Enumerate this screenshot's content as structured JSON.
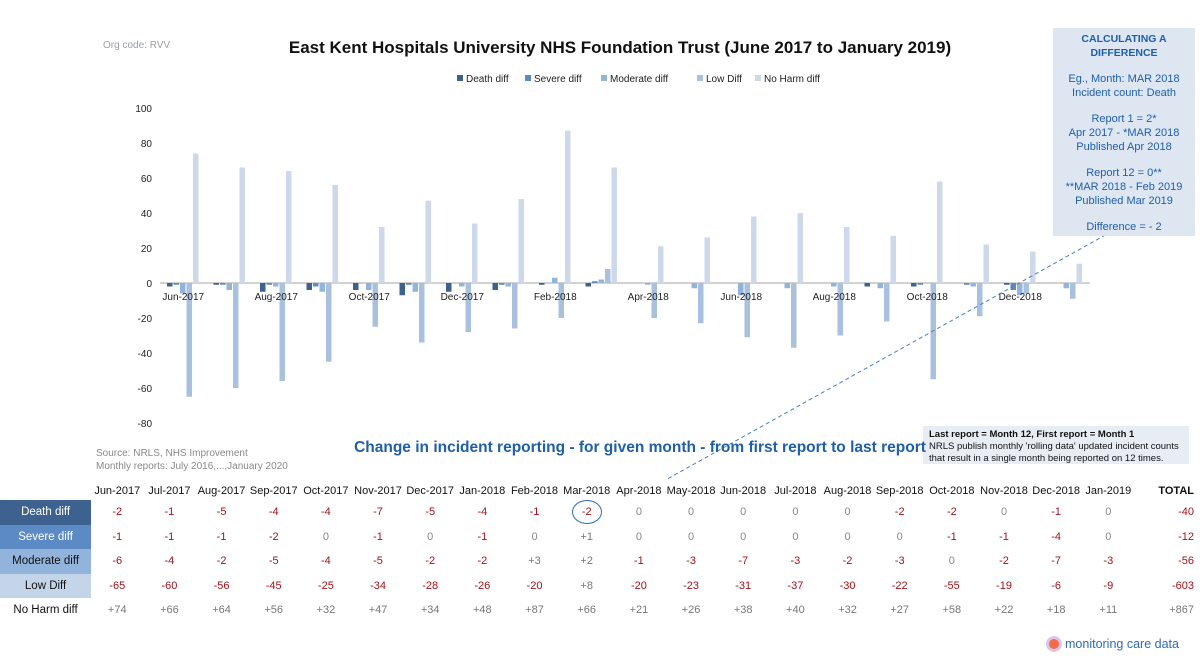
{
  "org_code": "Org code: RVV",
  "title": "East Kent Hospitals University NHS Foundation Trust (June 2017 to January 2019)",
  "subtitle": "Change in incident reporting - for given month - from first report to last report",
  "source": [
    "Source: NRLS, NHS Improvement",
    "Monthly reports: July 2016,...,January 2020"
  ],
  "callout": {
    "head": "CALCULATING A DIFFERENCE",
    "blocks": [
      [
        "Eg., Month: MAR 2018",
        "Incident count: Death"
      ],
      [
        "Report 1 = 2*",
        "Apr 2017 - *MAR 2018",
        "Published Apr 2018"
      ],
      [
        "Report 12 = 0**",
        "**MAR 2018 - Feb 2019",
        "Published Mar 2019"
      ],
      [
        "Difference = - 2"
      ]
    ]
  },
  "note": {
    "bold": "Last report = Month 12, First report = Month 1",
    "text": "NRLS publish monthly 'rolling data' updated incident counts that result in a single month being reported on 12 times."
  },
  "logo": "monitoring care data",
  "table": {
    "total_label": "TOTAL",
    "highlight": {
      "row": 0,
      "col": 9
    }
  },
  "chart_data": {
    "type": "bar",
    "categories": [
      "Jun-2017",
      "Jul-2017",
      "Aug-2017",
      "Sep-2017",
      "Oct-2017",
      "Nov-2017",
      "Dec-2017",
      "Jan-2018",
      "Feb-2018",
      "Mar-2018",
      "Apr-2018",
      "May-2018",
      "Jun-2018",
      "Jul-2018",
      "Aug-2018",
      "Sep-2018",
      "Oct-2018",
      "Nov-2018",
      "Dec-2018",
      "Jan-2019"
    ],
    "axis_labels": [
      "Jun-2017",
      "Aug-2017",
      "Oct-2017",
      "Dec-2017",
      "Feb-2018",
      "Apr-2018",
      "Jun-2018",
      "Aug-2018",
      "Oct-2018",
      "Dec-2018"
    ],
    "ylim": [
      -80,
      100
    ],
    "yticks": [
      100,
      80,
      60,
      40,
      20,
      0,
      -20,
      -40,
      -60,
      -80
    ],
    "series": [
      {
        "name": "Death diff",
        "color": "#3e628f",
        "values": [
          -2,
          -1,
          -5,
          -4,
          -4,
          -7,
          -5,
          -4,
          -1,
          -2,
          0,
          0,
          0,
          0,
          0,
          -2,
          -2,
          0,
          -1,
          0
        ],
        "total": -40
      },
      {
        "name": "Severe diff",
        "color": "#5c8ac4",
        "values": [
          -1,
          -1,
          -1,
          -2,
          0,
          -1,
          0,
          -1,
          0,
          1,
          0,
          0,
          0,
          0,
          0,
          0,
          -1,
          -1,
          -4,
          0
        ],
        "total": -12
      },
      {
        "name": "Moderate diff",
        "color": "#92b4dc",
        "values": [
          -6,
          -4,
          -2,
          -5,
          -4,
          -5,
          -2,
          -2,
          3,
          2,
          -1,
          -3,
          -7,
          -3,
          -2,
          -3,
          0,
          -2,
          -7,
          -3
        ],
        "total": -56
      },
      {
        "name": "Low Diff",
        "color": "#a9c1df",
        "values": [
          -65,
          -60,
          -56,
          -45,
          -25,
          -34,
          -28,
          -26,
          -20,
          8,
          -20,
          -23,
          -31,
          -37,
          -30,
          -22,
          -55,
          -19,
          -6,
          -9
        ],
        "total": -603
      },
      {
        "name": "No Harm diff",
        "color": "#cdd9ea",
        "values": [
          74,
          66,
          64,
          56,
          32,
          47,
          34,
          48,
          87,
          66,
          21,
          26,
          38,
          40,
          32,
          27,
          58,
          22,
          18,
          11
        ],
        "total": 867
      }
    ]
  }
}
